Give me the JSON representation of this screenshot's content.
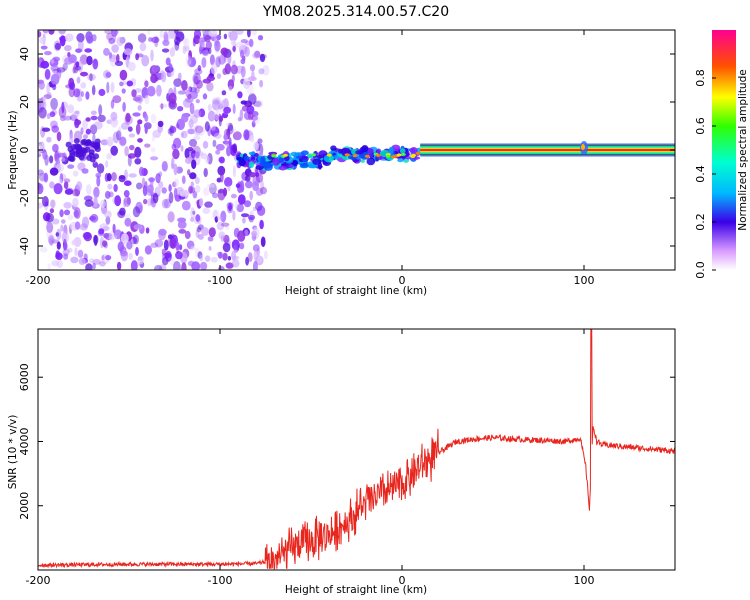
{
  "title": "YM08.2025.314.00.57.C20",
  "chart_data": [
    {
      "type": "heatmap",
      "title": "YM08.2025.314.00.57.C20",
      "xlabel": "Height of straight line (km)",
      "ylabel": "Frequency (Hz)",
      "xlim": [
        -200,
        150
      ],
      "ylim": [
        -50,
        50
      ],
      "x_ticks": [
        -200,
        -100,
        0,
        100
      ],
      "x_tick_labels": [
        "-200",
        "-100",
        "0",
        "100"
      ],
      "y_ticks": [
        -40,
        -20,
        0,
        20,
        40
      ],
      "y_tick_labels": [
        "-40",
        "-20",
        "0",
        "20",
        "40"
      ],
      "colorbar": {
        "label": "Normalized spectral amplitude",
        "range": [
          0,
          1
        ],
        "ticks": [
          0.0,
          0.2,
          0.4,
          0.6,
          0.8
        ],
        "tick_labels": [
          "0.0",
          "0.2",
          "0.4",
          "0.6",
          "0.8"
        ]
      },
      "features": {
        "noise_region_x": [
          -200,
          -78
        ],
        "signal_band_x": [
          -90,
          150
        ],
        "signal_frequency_hz": 0,
        "disturbance_x": 100
      }
    },
    {
      "type": "line",
      "xlabel": "Height of straight line (km)",
      "ylabel": "SNR (10 * v/v)",
      "xlim": [
        -200,
        150
      ],
      "ylim": [
        0,
        7500
      ],
      "x_ticks": [
        -200,
        -100,
        0,
        100
      ],
      "x_tick_labels": [
        "-200",
        "-100",
        "0",
        "100"
      ],
      "y_ticks": [
        2000,
        4000,
        6000
      ],
      "y_tick_labels": [
        "2000",
        "4000",
        "6000"
      ],
      "series": [
        {
          "name": "SNR",
          "color": "#e8261e",
          "x": [
            -200,
            -150,
            -100,
            -80,
            -70,
            -60,
            -50,
            -40,
            -30,
            -20,
            -10,
            0,
            10,
            20,
            30,
            40,
            50,
            60,
            70,
            80,
            90,
            98,
            101,
            103,
            105,
            107,
            110,
            120,
            130,
            140,
            150
          ],
          "values": [
            150,
            180,
            180,
            200,
            300,
            700,
            900,
            1100,
            1500,
            2100,
            2400,
            2700,
            3200,
            3650,
            4000,
            4080,
            4120,
            4080,
            4050,
            4030,
            4000,
            4100,
            3200,
            1900,
            4500,
            4000,
            3900,
            3850,
            3800,
            3750,
            3700
          ]
        }
      ],
      "annotations": {
        "spike_x": 104,
        "spike_value": 7500
      }
    }
  ]
}
